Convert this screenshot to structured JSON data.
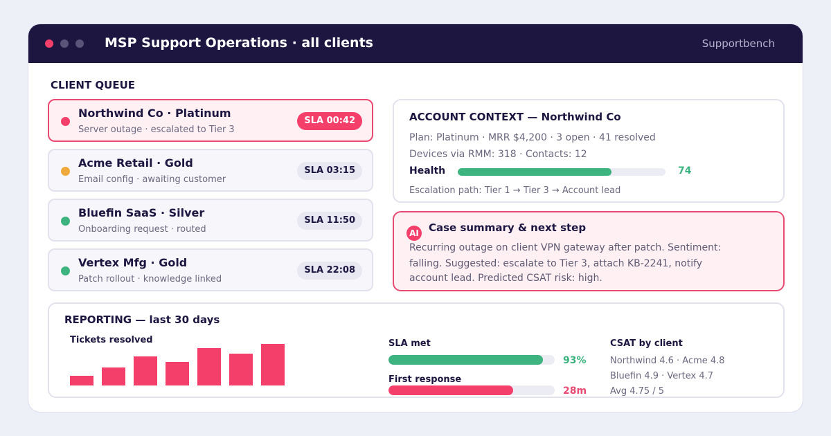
{
  "header": {
    "title": "MSP Support Operations · all clients",
    "brand": "Supportbench"
  },
  "queue": {
    "title": "CLIENT QUEUE",
    "items": [
      {
        "name": "Northwind Co · Platinum",
        "detail": "Server outage · escalated to Tier 3",
        "sla": "SLA 00:42",
        "status": "urgent"
      },
      {
        "name": "Acme Retail · Gold",
        "detail": "Email config · awaiting customer",
        "sla": "SLA 03:15",
        "status": "waiting"
      },
      {
        "name": "Bluefin SaaS · Silver",
        "detail": "Onboarding request · routed",
        "sla": "SLA 11:50",
        "status": "ok"
      },
      {
        "name": "Vertex Mfg · Gold",
        "detail": "Patch rollout · knowledge linked",
        "sla": "SLA 22:08",
        "status": "ok"
      }
    ]
  },
  "account": {
    "title": "ACCOUNT CONTEXT — Northwind Co",
    "lines": [
      "Plan: Platinum · MRR $4,200 · 3 open · 41 resolved",
      "Devices via RMM: 318 · Contacts: 12"
    ],
    "health_label": "Health",
    "health": 74,
    "escalation": "Escalation path: Tier 1 → Tier 3 → Account lead"
  },
  "ai": {
    "badge": "AI",
    "title": "Case summary & next step",
    "lines": [
      "Recurring outage on client VPN gateway after patch. Sentiment:",
      "falling. Suggested: escalate to Tier 3, attach KB-2241, notify",
      "account lead. Predicted CSAT risk: high."
    ]
  },
  "reporting": {
    "title": "REPORTING — last 30 days",
    "tickets": {
      "label": "Tickets resolved",
      "values": [
        14,
        26,
        42,
        34,
        54,
        46,
        60
      ]
    },
    "sla_met": {
      "label": "SLA met",
      "value": 93,
      "value_label": "93%"
    },
    "first_response": {
      "label": "First response",
      "value": 28,
      "value_label": "28m"
    },
    "csat": {
      "title": "CSAT by client",
      "lines": [
        "Northwind 4.6 · Acme 4.8",
        "Bluefin 4.9 · Vertex 4.7",
        "Avg 4.75 / 5"
      ]
    }
  }
}
